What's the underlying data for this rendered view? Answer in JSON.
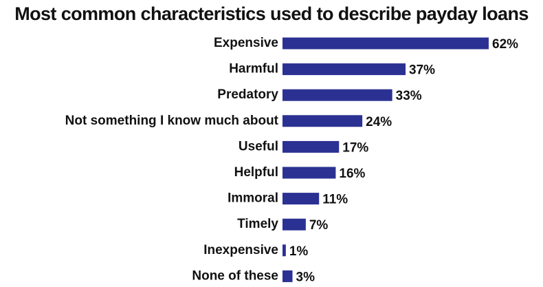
{
  "chart_data": {
    "type": "bar",
    "orientation": "horizontal",
    "title": "Most common characteristics used to describe payday loans",
    "categories": [
      "Expensive",
      "Harmful",
      "Predatory",
      "Not something I know much about",
      "Useful",
      "Helpful",
      "Immoral",
      "Timely",
      "Inexpensive",
      "None of these"
    ],
    "values": [
      62,
      37,
      33,
      24,
      17,
      16,
      11,
      7,
      1,
      3
    ],
    "value_labels": [
      "62%",
      "37%",
      "33%",
      "24%",
      "17%",
      "16%",
      "11%",
      "7%",
      "1%",
      "3%"
    ],
    "color": "#2b3192"
  }
}
